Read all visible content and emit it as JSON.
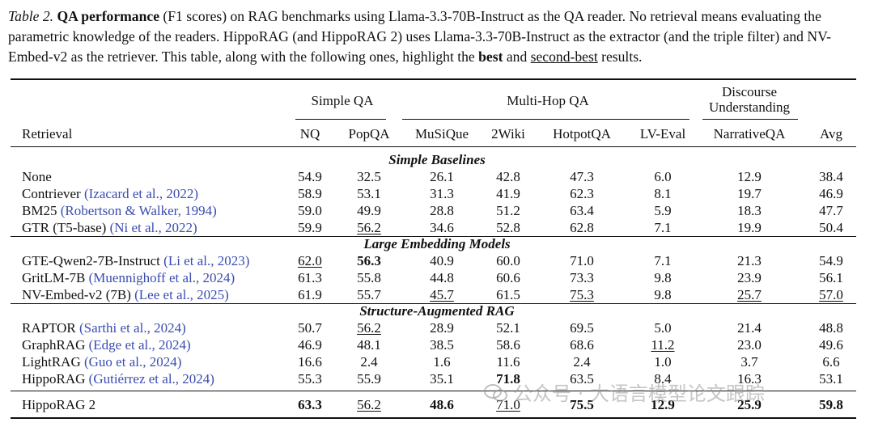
{
  "caption": {
    "label": "Table 2.",
    "bold_title": "QA performance",
    "text1": " (F1 scores) on RAG benchmarks using Llama-3.3-70B-Instruct as the QA reader. No retrieval means evaluating the parametric knowledge of the readers. HippoRAG (and HippoRAG 2) uses Llama-3.3-70B-Instruct as the extractor (and the triple filter) and NV-Embed-v2 as the retriever. This table, along with the following ones, highlight the ",
    "best": "best",
    "and": " and ",
    "second_best": "second-best",
    "end": " results."
  },
  "table": {
    "groups": {
      "simple_qa": "Simple QA",
      "multi_hop_qa": "Multi-Hop QA",
      "discourse_line1": "Discourse",
      "discourse_line2": "Understanding"
    },
    "columns": [
      "Retrieval",
      "NQ",
      "PopQA",
      "MuSiQue",
      "2Wiki",
      "HotpotQA",
      "LV-Eval",
      "NarrativeQA",
      "Avg"
    ],
    "sections": [
      {
        "title": "Simple Baselines",
        "rows": [
          {
            "name": "None",
            "ref": "",
            "v": [
              "54.9",
              "32.5",
              "26.1",
              "42.8",
              "47.3",
              "6.0",
              "12.9",
              "38.4"
            ],
            "bold": [],
            "ul": []
          },
          {
            "name": "Contriever ",
            "ref": "(Izacard et al., 2022)",
            "v": [
              "58.9",
              "53.1",
              "31.3",
              "41.9",
              "62.3",
              "8.1",
              "19.7",
              "46.9"
            ],
            "bold": [],
            "ul": []
          },
          {
            "name": "BM25 ",
            "ref": "(Robertson & Walker, 1994)",
            "v": [
              "59.0",
              "49.9",
              "28.8",
              "51.2",
              "63.4",
              "5.9",
              "18.3",
              "47.7"
            ],
            "bold": [],
            "ul": []
          },
          {
            "name": "GTR (T5-base) ",
            "ref": "(Ni et al., 2022)",
            "v": [
              "59.9",
              "56.2",
              "34.6",
              "52.8",
              "62.8",
              "7.1",
              "19.9",
              "50.4"
            ],
            "bold": [],
            "ul": [
              1
            ]
          }
        ]
      },
      {
        "title": "Large Embedding Models",
        "rows": [
          {
            "name": "GTE-Qwen2-7B-Instruct ",
            "ref": "(Li et al., 2023)",
            "v": [
              "62.0",
              "56.3",
              "40.9",
              "60.0",
              "71.0",
              "7.1",
              "21.3",
              "54.9"
            ],
            "bold": [
              1
            ],
            "ul": [
              0
            ]
          },
          {
            "name": "GritLM-7B ",
            "ref": "(Muennighoff et al., 2024)",
            "v": [
              "61.3",
              "55.8",
              "44.8",
              "60.6",
              "73.3",
              "9.8",
              "23.9",
              "56.1"
            ],
            "bold": [],
            "ul": []
          },
          {
            "name": "NV-Embed-v2 (7B) ",
            "ref": "(Lee et al., 2025)",
            "v": [
              "61.9",
              "55.7",
              "45.7",
              "61.5",
              "75.3",
              "9.8",
              "25.7",
              "57.0"
            ],
            "bold": [],
            "ul": [
              2,
              4,
              6,
              7
            ]
          }
        ]
      },
      {
        "title": "Structure-Augmented RAG",
        "rows": [
          {
            "name": "RAPTOR ",
            "ref": "(Sarthi et al., 2024)",
            "v": [
              "50.7",
              "56.2",
              "28.9",
              "52.1",
              "69.5",
              "5.0",
              "21.4",
              "48.8"
            ],
            "bold": [],
            "ul": [
              1
            ]
          },
          {
            "name": "GraphRAG ",
            "ref": "(Edge et al., 2024)",
            "v": [
              "46.9",
              "48.1",
              "38.5",
              "58.6",
              "68.6",
              "11.2",
              "23.0",
              "49.6"
            ],
            "bold": [],
            "ul": [
              5
            ]
          },
          {
            "name": "LightRAG ",
            "ref": "(Guo et al., 2024)",
            "v": [
              "16.6",
              "2.4",
              "1.6",
              "11.6",
              "2.4",
              "1.0",
              "3.7",
              "6.6"
            ],
            "bold": [],
            "ul": []
          },
          {
            "name": "HippoRAG ",
            "ref": "(Gutiérrez et al., 2024)",
            "v": [
              "55.3",
              "55.9",
              "35.1",
              "71.8",
              "63.5",
              "8.4",
              "16.3",
              "53.1"
            ],
            "bold": [
              3
            ],
            "ul": []
          }
        ]
      }
    ],
    "final_row": {
      "name": "HippoRAG 2",
      "ref": "",
      "v": [
        "63.3",
        "56.2",
        "48.6",
        "71.0",
        "75.5",
        "12.9",
        "25.9",
        "59.8"
      ],
      "bold": [
        0,
        2,
        4,
        5,
        6,
        7
      ],
      "ul": [
        1,
        3
      ]
    }
  },
  "watermark": "公众号 · 大语言模型论文跟踪"
}
